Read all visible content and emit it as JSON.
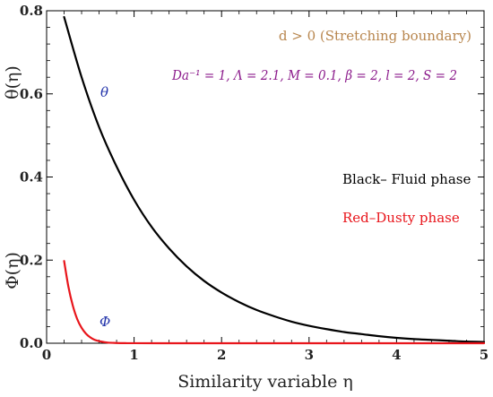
{
  "chart_data": {
    "type": "line",
    "xlabel": "Similarity variable η",
    "ylabel_theta": "θ(η)",
    "ylabel_phi": "Φ(η)",
    "xlim": [
      0,
      5
    ],
    "ylim": [
      0,
      0.8
    ],
    "x_ticks": [
      0,
      1,
      2,
      3,
      4,
      5
    ],
    "y_ticks": [
      0.0,
      0.2,
      0.4,
      0.6,
      0.8
    ],
    "y_tick_labels": [
      "0.0",
      "0.2",
      "0.4",
      "0.6",
      "0.8"
    ],
    "grid": false,
    "series": [
      {
        "name": "θ",
        "color": "#000000",
        "x": [
          0.2,
          0.4,
          0.6,
          0.8,
          1.0,
          1.2,
          1.4,
          1.6,
          1.8,
          2.0,
          2.2,
          2.4,
          2.6,
          2.8,
          3.0,
          3.2,
          3.4,
          3.6,
          3.8,
          4.0,
          4.2,
          4.4,
          4.6,
          4.8,
          5.0
        ],
        "y": [
          0.785,
          0.64,
          0.52,
          0.425,
          0.345,
          0.28,
          0.228,
          0.185,
          0.15,
          0.122,
          0.099,
          0.08,
          0.065,
          0.052,
          0.042,
          0.034,
          0.027,
          0.022,
          0.017,
          0.013,
          0.01,
          0.008,
          0.006,
          0.004,
          0.003
        ]
      },
      {
        "name": "Φ",
        "color": "#e8151b",
        "x": [
          0.2,
          0.25,
          0.3,
          0.35,
          0.4,
          0.45,
          0.5,
          0.55,
          0.6,
          0.65,
          0.7,
          0.8,
          0.9,
          1.0,
          1.5,
          2.0,
          3.0,
          4.0,
          5.0
        ],
        "y": [
          0.198,
          0.135,
          0.09,
          0.058,
          0.037,
          0.023,
          0.014,
          0.008,
          0.005,
          0.003,
          0.0015,
          0.0006,
          0.0002,
          0.0001,
          0.0,
          0.0,
          0.0,
          0.0,
          0.0
        ]
      }
    ],
    "annotations": {
      "theta_label": "θ",
      "phi_label": "Φ",
      "boundary": "d > 0 (Stretching boundary)",
      "params": "Da⁻¹ = 1, Λ = 2.1, M = 0.1, β = 2, l = 2, S = 2",
      "fluid_phase": "Black– Fluid phase",
      "dusty_phase": "Red–Dusty phase"
    },
    "colors": {
      "boundary": "#b8864e",
      "params": "#8b1a8b",
      "greek": "#2233aa",
      "dusty": "#e8151b",
      "fluid": "#000000"
    }
  }
}
